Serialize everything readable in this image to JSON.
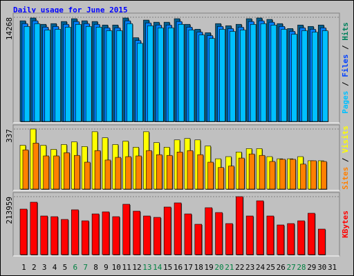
{
  "chart_data": [
    {
      "type": "bar",
      "title": "Daily usage for June 2015",
      "ylim": [
        0,
        14268
      ],
      "yticks": [
        14268
      ],
      "grid": true,
      "legend_separator": " / ",
      "series": [
        {
          "name": "Hits",
          "color": "#005f8f",
          "label_color": "#00805c",
          "values": [
            13786,
            14172,
            13304,
            13400,
            13690,
            14075,
            13786,
            13690,
            13207,
            13207,
            14172,
            11472,
            13882,
            13593,
            13593,
            14075,
            13304,
            12629,
            12147,
            13400,
            13111,
            13304,
            14075,
            14172,
            13979,
            13400,
            12725,
            13207,
            13015,
            13207,
            null
          ]
        },
        {
          "name": "Files",
          "color": "#0080ff",
          "label_color": "#0040ff",
          "values": [
            13396,
            13782,
            12914,
            13010,
            13300,
            13685,
            13396,
            13300,
            12817,
            12817,
            13782,
            11082,
            13492,
            13203,
            13203,
            13685,
            12914,
            12239,
            11757,
            13010,
            12721,
            12914,
            13685,
            13782,
            13589,
            13010,
            12335,
            12817,
            12625,
            12817,
            null
          ]
        },
        {
          "name": "Pages",
          "color": "#00c0ff",
          "label_color": "#00c0ff",
          "values": [
            13006,
            13392,
            12524,
            12620,
            12910,
            13295,
            13006,
            12910,
            12427,
            12427,
            13392,
            10692,
            13102,
            12813,
            12813,
            13295,
            12524,
            11849,
            11367,
            12620,
            12331,
            12524,
            13295,
            13392,
            13199,
            12620,
            11945,
            12427,
            12235,
            12427,
            null
          ]
        }
      ]
    },
    {
      "type": "bar",
      "ylim": [
        0,
        337
      ],
      "yticks": [
        337
      ],
      "grid": true,
      "legend_separator": " / ",
      "series": [
        {
          "name": "Visits",
          "color": "#ffff00",
          "label_color": "#ffff00",
          "values": [
            246,
            337,
            246,
            223,
            250,
            265,
            239,
            322,
            288,
            250,
            269,
            235,
            322,
            261,
            235,
            276,
            284,
            276,
            242,
            170,
            182,
            208,
            227,
            227,
            182,
            170,
            170,
            182,
            159,
            159,
            null
          ]
        },
        {
          "name": "Sites",
          "color": "#ff8000",
          "label_color": "#ff8000",
          "values": [
            220,
            258,
            186,
            186,
            204,
            189,
            151,
            216,
            163,
            178,
            182,
            186,
            216,
            193,
            189,
            208,
            216,
            193,
            151,
            121,
            129,
            174,
            197,
            189,
            155,
            167,
            167,
            140,
            159,
            155,
            null
          ]
        }
      ]
    },
    {
      "type": "bar",
      "ylim": [
        0,
        213959
      ],
      "yticks": [
        213959
      ],
      "grid": true,
      "categories": [
        "1",
        "2",
        "3",
        "4",
        "5",
        "6",
        "7",
        "8",
        "9",
        "10",
        "11",
        "12",
        "13",
        "14",
        "15",
        "16",
        "17",
        "18",
        "19",
        "20",
        "21",
        "22",
        "23",
        "24",
        "25",
        "26",
        "27",
        "28",
        "29",
        "30",
        "31"
      ],
      "label_color": "#000000",
      "weekend_color": "#008040",
      "weekend_categories": [
        5,
        6,
        12,
        13,
        19,
        20,
        26,
        27
      ],
      "series": [
        {
          "name": "KBytes",
          "color": "#ff0000",
          "label_color": "#ff0000",
          "values": [
            168102,
            193572,
            142632,
            140085,
            129897,
            165555,
            124803,
            150273,
            157914,
            140085,
            185931,
            160461,
            142632,
            137538,
            175743,
            191025,
            150273,
            112068,
            173196,
            155367,
            114615,
            213959,
            142632,
            198666,
            142632,
            109521,
            114615,
            124803,
            152820,
            94239,
            null
          ]
        }
      ]
    }
  ]
}
